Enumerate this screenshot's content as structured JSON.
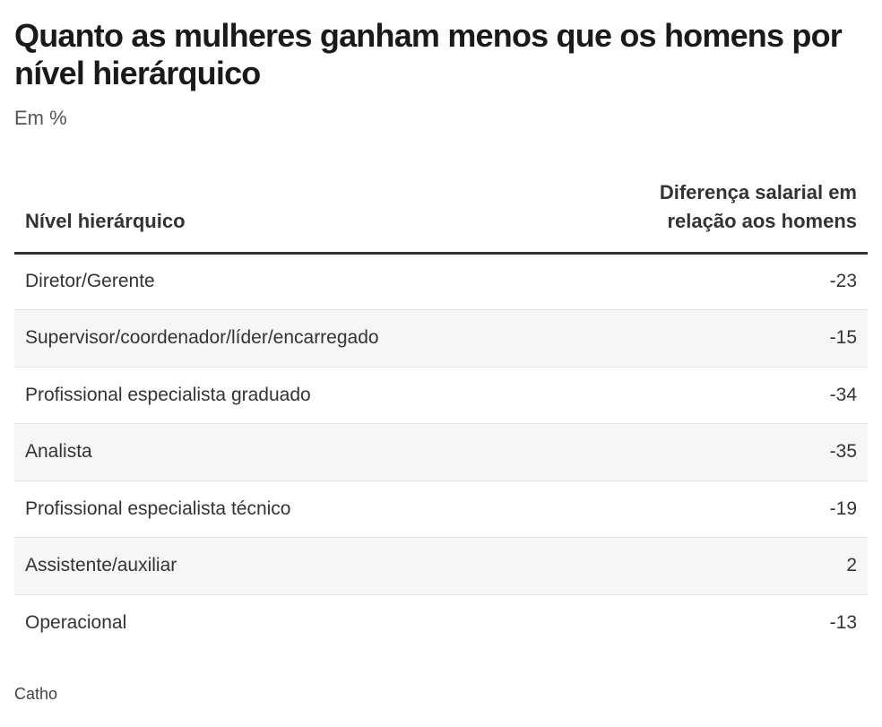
{
  "title": "Quanto as mulheres ganham menos que os homens por nível hierárquico",
  "subtitle": "Em %",
  "source": "Catho",
  "chart_data": {
    "type": "table",
    "title": "Quanto as mulheres ganham menos que os homens por nível hierárquico",
    "subtitle": "Em %",
    "columns": [
      "Nível hierárquico",
      "Diferença salarial em relação aos homens"
    ],
    "rows": [
      {
        "level": "Diretor/Gerente",
        "value": -23
      },
      {
        "level": "Supervisor/coordenador/líder/encarregado",
        "value": -15
      },
      {
        "level": "Profissional especialista graduado",
        "value": -34
      },
      {
        "level": "Analista",
        "value": -35
      },
      {
        "level": "Profissional especialista técnico",
        "value": -19
      },
      {
        "level": "Assistente/auxiliar",
        "value": 2
      },
      {
        "level": "Operacional",
        "value": -13
      }
    ]
  }
}
